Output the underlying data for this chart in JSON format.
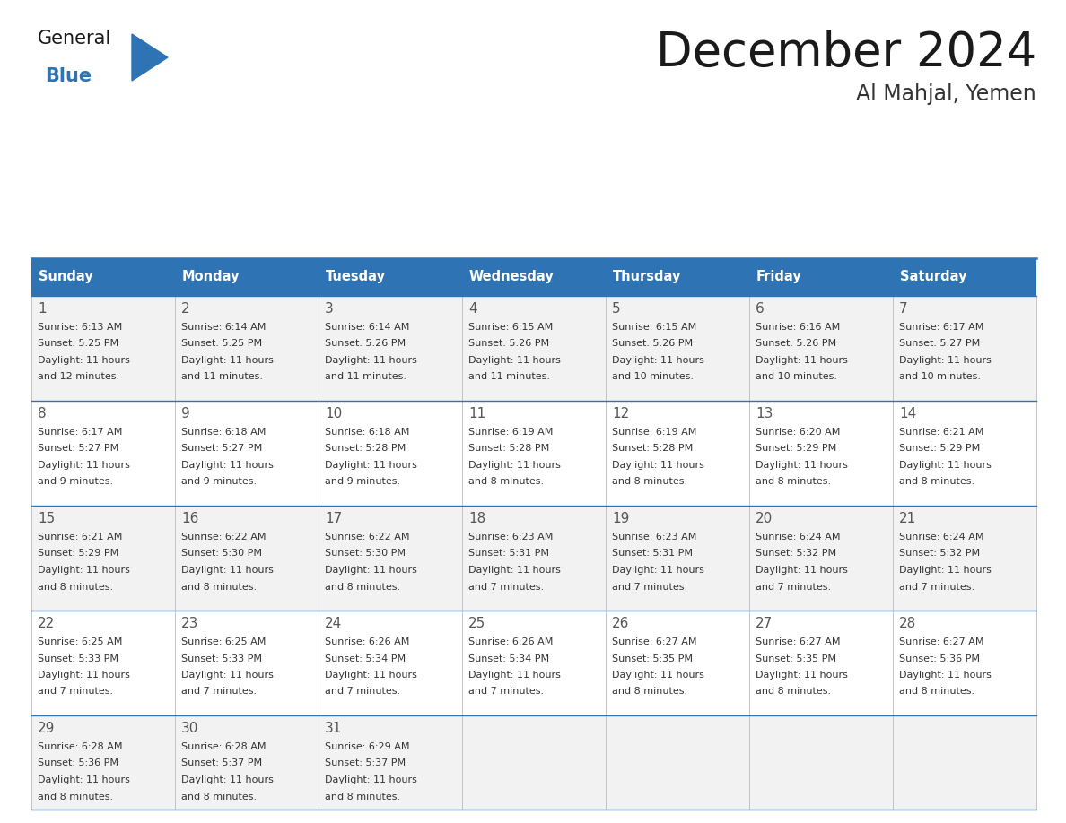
{
  "title": "December 2024",
  "subtitle": "Al Mahjal, Yemen",
  "header_color": "#2E74B5",
  "header_text_color": "#FFFFFF",
  "day_names": [
    "Sunday",
    "Monday",
    "Tuesday",
    "Wednesday",
    "Thursday",
    "Friday",
    "Saturday"
  ],
  "cell_bg_even": "#F2F2F2",
  "cell_bg_odd": "#FFFFFF",
  "border_color": "#2E74B5",
  "text_color": "#333333",
  "num_color": "#555555",
  "days": [
    {
      "day": 1,
      "col": 0,
      "row": 0,
      "sunrise": "6:13 AM",
      "sunset": "5:25 PM",
      "dl1": "Daylight: 11 hours",
      "dl2": "and 12 minutes."
    },
    {
      "day": 2,
      "col": 1,
      "row": 0,
      "sunrise": "6:14 AM",
      "sunset": "5:25 PM",
      "dl1": "Daylight: 11 hours",
      "dl2": "and 11 minutes."
    },
    {
      "day": 3,
      "col": 2,
      "row": 0,
      "sunrise": "6:14 AM",
      "sunset": "5:26 PM",
      "dl1": "Daylight: 11 hours",
      "dl2": "and 11 minutes."
    },
    {
      "day": 4,
      "col": 3,
      "row": 0,
      "sunrise": "6:15 AM",
      "sunset": "5:26 PM",
      "dl1": "Daylight: 11 hours",
      "dl2": "and 11 minutes."
    },
    {
      "day": 5,
      "col": 4,
      "row": 0,
      "sunrise": "6:15 AM",
      "sunset": "5:26 PM",
      "dl1": "Daylight: 11 hours",
      "dl2": "and 10 minutes."
    },
    {
      "day": 6,
      "col": 5,
      "row": 0,
      "sunrise": "6:16 AM",
      "sunset": "5:26 PM",
      "dl1": "Daylight: 11 hours",
      "dl2": "and 10 minutes."
    },
    {
      "day": 7,
      "col": 6,
      "row": 0,
      "sunrise": "6:17 AM",
      "sunset": "5:27 PM",
      "dl1": "Daylight: 11 hours",
      "dl2": "and 10 minutes."
    },
    {
      "day": 8,
      "col": 0,
      "row": 1,
      "sunrise": "6:17 AM",
      "sunset": "5:27 PM",
      "dl1": "Daylight: 11 hours",
      "dl2": "and 9 minutes."
    },
    {
      "day": 9,
      "col": 1,
      "row": 1,
      "sunrise": "6:18 AM",
      "sunset": "5:27 PM",
      "dl1": "Daylight: 11 hours",
      "dl2": "and 9 minutes."
    },
    {
      "day": 10,
      "col": 2,
      "row": 1,
      "sunrise": "6:18 AM",
      "sunset": "5:28 PM",
      "dl1": "Daylight: 11 hours",
      "dl2": "and 9 minutes."
    },
    {
      "day": 11,
      "col": 3,
      "row": 1,
      "sunrise": "6:19 AM",
      "sunset": "5:28 PM",
      "dl1": "Daylight: 11 hours",
      "dl2": "and 8 minutes."
    },
    {
      "day": 12,
      "col": 4,
      "row": 1,
      "sunrise": "6:19 AM",
      "sunset": "5:28 PM",
      "dl1": "Daylight: 11 hours",
      "dl2": "and 8 minutes."
    },
    {
      "day": 13,
      "col": 5,
      "row": 1,
      "sunrise": "6:20 AM",
      "sunset": "5:29 PM",
      "dl1": "Daylight: 11 hours",
      "dl2": "and 8 minutes."
    },
    {
      "day": 14,
      "col": 6,
      "row": 1,
      "sunrise": "6:21 AM",
      "sunset": "5:29 PM",
      "dl1": "Daylight: 11 hours",
      "dl2": "and 8 minutes."
    },
    {
      "day": 15,
      "col": 0,
      "row": 2,
      "sunrise": "6:21 AM",
      "sunset": "5:29 PM",
      "dl1": "Daylight: 11 hours",
      "dl2": "and 8 minutes."
    },
    {
      "day": 16,
      "col": 1,
      "row": 2,
      "sunrise": "6:22 AM",
      "sunset": "5:30 PM",
      "dl1": "Daylight: 11 hours",
      "dl2": "and 8 minutes."
    },
    {
      "day": 17,
      "col": 2,
      "row": 2,
      "sunrise": "6:22 AM",
      "sunset": "5:30 PM",
      "dl1": "Daylight: 11 hours",
      "dl2": "and 8 minutes."
    },
    {
      "day": 18,
      "col": 3,
      "row": 2,
      "sunrise": "6:23 AM",
      "sunset": "5:31 PM",
      "dl1": "Daylight: 11 hours",
      "dl2": "and 7 minutes."
    },
    {
      "day": 19,
      "col": 4,
      "row": 2,
      "sunrise": "6:23 AM",
      "sunset": "5:31 PM",
      "dl1": "Daylight: 11 hours",
      "dl2": "and 7 minutes."
    },
    {
      "day": 20,
      "col": 5,
      "row": 2,
      "sunrise": "6:24 AM",
      "sunset": "5:32 PM",
      "dl1": "Daylight: 11 hours",
      "dl2": "and 7 minutes."
    },
    {
      "day": 21,
      "col": 6,
      "row": 2,
      "sunrise": "6:24 AM",
      "sunset": "5:32 PM",
      "dl1": "Daylight: 11 hours",
      "dl2": "and 7 minutes."
    },
    {
      "day": 22,
      "col": 0,
      "row": 3,
      "sunrise": "6:25 AM",
      "sunset": "5:33 PM",
      "dl1": "Daylight: 11 hours",
      "dl2": "and 7 minutes."
    },
    {
      "day": 23,
      "col": 1,
      "row": 3,
      "sunrise": "6:25 AM",
      "sunset": "5:33 PM",
      "dl1": "Daylight: 11 hours",
      "dl2": "and 7 minutes."
    },
    {
      "day": 24,
      "col": 2,
      "row": 3,
      "sunrise": "6:26 AM",
      "sunset": "5:34 PM",
      "dl1": "Daylight: 11 hours",
      "dl2": "and 7 minutes."
    },
    {
      "day": 25,
      "col": 3,
      "row": 3,
      "sunrise": "6:26 AM",
      "sunset": "5:34 PM",
      "dl1": "Daylight: 11 hours",
      "dl2": "and 7 minutes."
    },
    {
      "day": 26,
      "col": 4,
      "row": 3,
      "sunrise": "6:27 AM",
      "sunset": "5:35 PM",
      "dl1": "Daylight: 11 hours",
      "dl2": "and 8 minutes."
    },
    {
      "day": 27,
      "col": 5,
      "row": 3,
      "sunrise": "6:27 AM",
      "sunset": "5:35 PM",
      "dl1": "Daylight: 11 hours",
      "dl2": "and 8 minutes."
    },
    {
      "day": 28,
      "col": 6,
      "row": 3,
      "sunrise": "6:27 AM",
      "sunset": "5:36 PM",
      "dl1": "Daylight: 11 hours",
      "dl2": "and 8 minutes."
    },
    {
      "day": 29,
      "col": 0,
      "row": 4,
      "sunrise": "6:28 AM",
      "sunset": "5:36 PM",
      "dl1": "Daylight: 11 hours",
      "dl2": "and 8 minutes."
    },
    {
      "day": 30,
      "col": 1,
      "row": 4,
      "sunrise": "6:28 AM",
      "sunset": "5:37 PM",
      "dl1": "Daylight: 11 hours",
      "dl2": "and 8 minutes."
    },
    {
      "day": 31,
      "col": 2,
      "row": 4,
      "sunrise": "6:29 AM",
      "sunset": "5:37 PM",
      "dl1": "Daylight: 11 hours",
      "dl2": "and 8 minutes."
    }
  ]
}
